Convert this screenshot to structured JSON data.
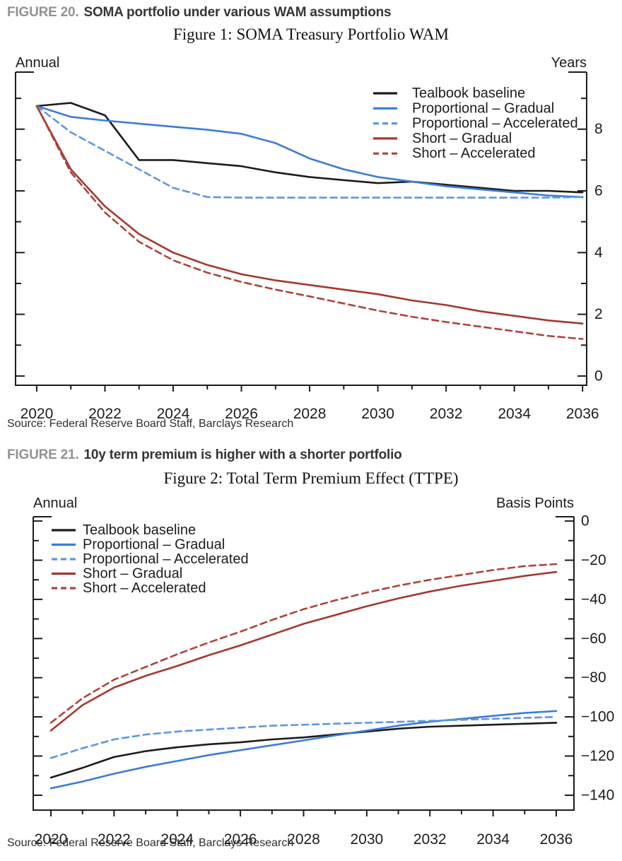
{
  "page": {
    "figure20": {
      "kicker": "FIGURE 20.",
      "heading": "SOMA portfolio under various WAM assumptions",
      "source": "Source: Federal Reserve Board Staff, Barclays Research"
    },
    "figure21": {
      "kicker": "FIGURE 21.",
      "heading": "10y term premium is higher with a shorter portfolio",
      "source": "Source: Federal Reserve Board Staff, Barclays Research"
    }
  },
  "colors": {
    "axis": "#1c1c1c",
    "black_line": "#1c1c1c",
    "blue_solid": "#3a7cd8",
    "blue_dashed": "#5d97e3",
    "red_solid": "#a4382f",
    "red_dashed": "#ad443a",
    "kicker_gray": "#8f9396",
    "heading_dark": "#333537"
  },
  "chart_data": [
    {
      "type": "line",
      "title": "Figure 1: SOMA Treasury Portfolio WAM",
      "corner_label_left": "Annual",
      "corner_label_right": "Years",
      "x": [
        2020,
        2021,
        2022,
        2023,
        2024,
        2025,
        2026,
        2027,
        2028,
        2029,
        2030,
        2031,
        2032,
        2033,
        2034,
        2035,
        2036
      ],
      "x_major_ticks": [
        2020,
        2022,
        2024,
        2026,
        2028,
        2030,
        2032,
        2034,
        2036
      ],
      "xlim": [
        2019.38,
        2036.12
      ],
      "ylim": [
        -0.3,
        9.85
      ],
      "yticks_major": [
        0,
        2,
        4,
        6,
        8
      ],
      "yticks_minor": [
        1,
        3,
        5,
        7,
        9
      ],
      "grid": false,
      "legend_position": "top-right-inside",
      "series": [
        {
          "name": "Tealbook baseline",
          "color": "#1c1c1c",
          "dash": "solid",
          "values": [
            8.75,
            8.85,
            8.45,
            7.0,
            7.0,
            6.9,
            6.8,
            6.6,
            6.45,
            6.35,
            6.25,
            6.3,
            6.2,
            6.1,
            6.0,
            6.0,
            5.95
          ]
        },
        {
          "name": "Proportional – Gradual",
          "color": "#3a7cd8",
          "dash": "solid",
          "values": [
            8.75,
            8.4,
            8.28,
            8.18,
            8.08,
            7.98,
            7.85,
            7.55,
            7.05,
            6.7,
            6.45,
            6.3,
            6.15,
            6.05,
            5.95,
            5.85,
            5.8
          ]
        },
        {
          "name": "Proportional – Accelerated",
          "color": "#5d97e3",
          "dash": "dashed",
          "values": [
            8.75,
            7.9,
            7.3,
            6.7,
            6.1,
            5.8,
            5.78,
            5.78,
            5.78,
            5.78,
            5.78,
            5.78,
            5.78,
            5.78,
            5.78,
            5.78,
            5.8
          ]
        },
        {
          "name": "Short – Gradual",
          "color": "#a4382f",
          "dash": "solid",
          "values": [
            8.75,
            6.7,
            5.5,
            4.6,
            4.0,
            3.6,
            3.3,
            3.1,
            2.95,
            2.8,
            2.65,
            2.45,
            2.3,
            2.1,
            1.95,
            1.8,
            1.7
          ]
        },
        {
          "name": "Short – Accelerated",
          "color": "#ad443a",
          "dash": "dashed",
          "values": [
            8.75,
            6.6,
            5.3,
            4.35,
            3.75,
            3.35,
            3.05,
            2.8,
            2.58,
            2.35,
            2.12,
            1.92,
            1.75,
            1.6,
            1.45,
            1.3,
            1.2
          ]
        }
      ]
    },
    {
      "type": "line",
      "title": "Figure 2: Total Term Premium Effect (TTPE)",
      "corner_label_left": "Annual",
      "corner_label_right": "Basis Points",
      "x": [
        2020,
        2021,
        2022,
        2023,
        2024,
        2025,
        2026,
        2027,
        2028,
        2029,
        2030,
        2031,
        2032,
        2033,
        2034,
        2035,
        2036
      ],
      "x_major_ticks": [
        2020,
        2022,
        2024,
        2026,
        2028,
        2030,
        2032,
        2034,
        2036
      ],
      "xlim": [
        2019.44,
        2036.56
      ],
      "ylim": [
        -147.6,
        2.2
      ],
      "yticks_major": [
        0,
        -20,
        -40,
        -60,
        -80,
        -100,
        -120,
        -140
      ],
      "yticks_minor": [
        -10,
        -30,
        -50,
        -70,
        -90,
        -110,
        -130
      ],
      "grid": false,
      "legend_position": "top-left-inside",
      "series": [
        {
          "name": "Tealbook baseline",
          "color": "#1c1c1c",
          "dash": "solid",
          "values": [
            -131,
            -126,
            -120.5,
            -117.5,
            -115.5,
            -114,
            -113,
            -111.5,
            -110.5,
            -109,
            -107.5,
            -106,
            -105,
            -104.5,
            -104,
            -103.5,
            -103
          ]
        },
        {
          "name": "Proportional – Gradual",
          "color": "#3a7cd8",
          "dash": "solid",
          "values": [
            -136.5,
            -133,
            -129,
            -125.5,
            -122.5,
            -119.5,
            -117,
            -114.5,
            -112,
            -109.5,
            -107,
            -104.5,
            -102.5,
            -101,
            -99.5,
            -98,
            -97
          ]
        },
        {
          "name": "Proportional – Accelerated",
          "color": "#5d97e3",
          "dash": "dashed",
          "values": [
            -121,
            -116,
            -111.5,
            -109,
            -107.5,
            -106.5,
            -105.5,
            -104.5,
            -104,
            -103.5,
            -103,
            -102.5,
            -102,
            -101.5,
            -101,
            -100.5,
            -100
          ]
        },
        {
          "name": "Short – Gradual",
          "color": "#a4382f",
          "dash": "solid",
          "values": [
            -107,
            -94,
            -85,
            -79,
            -74,
            -68.5,
            -63.5,
            -58,
            -52.5,
            -48,
            -43.5,
            -39.5,
            -36,
            -33,
            -30.5,
            -28,
            -26
          ]
        },
        {
          "name": "Short – Accelerated",
          "color": "#ad443a",
          "dash": "dashed",
          "values": [
            -103,
            -90.5,
            -81,
            -74.5,
            -68,
            -62,
            -56.5,
            -50.5,
            -45,
            -40.5,
            -36.5,
            -33,
            -30,
            -27.5,
            -25,
            -23,
            -22
          ]
        }
      ]
    }
  ]
}
